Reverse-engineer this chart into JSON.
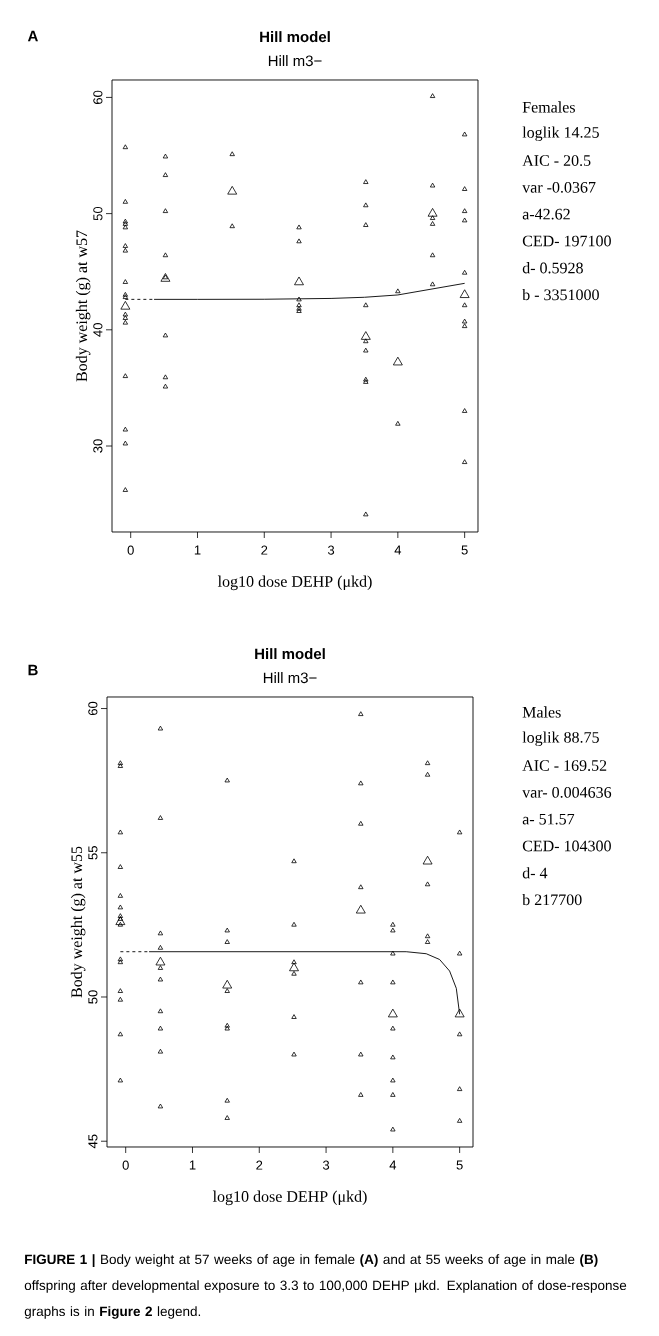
{
  "chart_data": [
    {
      "type": "scatter",
      "title": "Hill model",
      "subtitle": "Hill m3−",
      "xlabel": "log10 dose DEHP (μkd)",
      "ylabel": "Body weight (g) at w57",
      "xlim": [
        -0.28,
        5.2
      ],
      "ylim": [
        22.6,
        61.5
      ],
      "xticks": [
        0,
        1,
        2,
        3,
        4,
        5
      ],
      "yticks": [
        30,
        40,
        50,
        60
      ],
      "marker": "triangle",
      "annotations": [
        "A",
        "Females",
        "loglik 14.25",
        "AIC - 20.5",
        "var -0.0367",
        "a-42.62",
        "CED- 197100",
        "d- 0.5928",
        "b - 3351000"
      ],
      "series": [
        {
          "color": "#000000",
          "x": [
            -0.08,
            -0.08,
            -0.08,
            -0.08,
            -0.08,
            -0.08,
            -0.08,
            -0.08,
            -0.08,
            -0.08,
            -0.08,
            -0.08,
            -0.08,
            -0.08,
            -0.08,
            -0.08,
            -0.08,
            0.52,
            0.52,
            0.52,
            0.52,
            0.52,
            0.52,
            0.52,
            0.52,
            1.52,
            1.52,
            2.52,
            2.52,
            2.52,
            2.52,
            2.52,
            2.52,
            3.52,
            3.52,
            3.52,
            3.52,
            3.52,
            3.52,
            3.52,
            3.52,
            3.52,
            4,
            4,
            4.52,
            4.52,
            4.52,
            4.52,
            4.52,
            4.52,
            5,
            5,
            5,
            5,
            5,
            5,
            5,
            5,
            5,
            5
          ],
          "values": [
            55.7,
            51.0,
            49.3,
            49.1,
            48.8,
            47.2,
            46.8,
            44.1,
            43.0,
            42.8,
            41.3,
            41.0,
            40.6,
            36.0,
            31.4,
            30.2,
            26.2,
            54.9,
            53.3,
            50.2,
            46.4,
            44.5,
            39.5,
            35.9,
            35.1,
            55.1,
            48.9,
            48.8,
            47.6,
            42.6,
            42.1,
            41.8,
            41.6,
            52.7,
            50.7,
            49.0,
            42.1,
            39.0,
            38.2,
            35.7,
            35.5,
            24.1,
            43.3,
            31.9,
            60.1,
            52.4,
            49.6,
            49.1,
            46.4,
            43.9,
            56.8,
            52.1,
            50.2,
            49.4,
            44.9,
            42.1,
            40.7,
            40.3,
            33.0,
            28.6
          ]
        },
        {
          "color": "#000000",
          "x": [
            -0.08,
            0.52,
            1.52,
            2.52,
            3.52,
            4,
            4.52,
            5
          ],
          "values": [
            42.0,
            44.4,
            51.9,
            44.1,
            39.4,
            37.2,
            50.0,
            43.0
          ]
        },
        {
          "type": "line",
          "color": "#000000",
          "marker": "none",
          "line_style": "dashed",
          "x": [
            -0.08,
            0.35
          ],
          "values": [
            42.62,
            42.62
          ]
        },
        {
          "type": "line",
          "color": "#000000",
          "marker": "none",
          "line_style": "solid",
          "x": [
            0.35,
            1,
            2,
            3,
            3.5,
            4,
            4.5,
            5
          ],
          "values": [
            42.62,
            42.62,
            42.63,
            42.7,
            42.8,
            43.0,
            43.5,
            44.0
          ]
        }
      ]
    },
    {
      "type": "scatter",
      "title": "Hill model",
      "subtitle": "Hill m3−",
      "xlabel": "log10 dose DEHP (μkd)",
      "ylabel": "Body weight (g) at w55",
      "xlim": [
        -0.28,
        5.2
      ],
      "ylim": [
        44.8,
        60.4
      ],
      "xticks": [
        0,
        1,
        2,
        3,
        4,
        5
      ],
      "yticks": [
        45,
        50,
        55,
        60
      ],
      "marker": "triangle",
      "annotations": [
        "B",
        "Males",
        "loglik 88.75",
        "AIC - 169.52",
        "var- 0.004636",
        "a- 51.57",
        "CED- 104300",
        "d- 4",
        "b 217700",
        "**FIGURE 1 |** Body weight at 57 weeks of age in female **(A)** and at 55 weeks of age in male **(B)** offspring after developmental exposure to 3.3 to 100,000 DEHP μkd. Explanation of dose-response graphs is in **Figure 2** legend."
      ],
      "series": [
        {
          "color": "#000000",
          "x": [
            -0.08,
            -0.08,
            -0.08,
            -0.08,
            -0.08,
            -0.08,
            -0.08,
            -0.08,
            -0.08,
            -0.08,
            -0.08,
            -0.08,
            -0.08,
            -0.08,
            -0.08,
            0.52,
            0.52,
            0.52,
            0.52,
            0.52,
            0.52,
            0.52,
            0.52,
            0.52,
            0.52,
            1.52,
            1.52,
            1.52,
            1.52,
            1.52,
            1.52,
            1.52,
            1.52,
            2.52,
            2.52,
            2.52,
            2.52,
            2.52,
            2.52,
            3.52,
            3.52,
            3.52,
            3.52,
            3.52,
            3.52,
            3.52,
            4,
            4,
            4,
            4,
            4,
            4,
            4,
            4,
            4,
            4.52,
            4.52,
            4.52,
            4.52,
            4.52,
            5,
            5,
            5,
            5,
            5
          ],
          "values": [
            58.1,
            58.0,
            55.7,
            54.5,
            53.5,
            53.1,
            52.8,
            52.7,
            52.5,
            51.3,
            51.2,
            50.2,
            49.9,
            48.7,
            47.1,
            59.3,
            56.2,
            52.2,
            51.7,
            51.0,
            50.6,
            49.5,
            48.9,
            48.1,
            46.2,
            57.5,
            52.3,
            51.9,
            50.2,
            49.0,
            48.9,
            46.4,
            45.8,
            54.7,
            52.5,
            51.2,
            50.8,
            49.3,
            48.0,
            59.8,
            57.4,
            56.0,
            53.8,
            50.5,
            48.0,
            46.6,
            52.5,
            52.3,
            51.5,
            50.5,
            48.9,
            47.9,
            47.1,
            46.6,
            45.4,
            58.1,
            57.7,
            53.9,
            52.1,
            51.9,
            55.7,
            51.5,
            48.7,
            46.8,
            45.7
          ]
        },
        {
          "color": "#000000",
          "x": [
            -0.08,
            0.52,
            1.52,
            2.52,
            3.52,
            4,
            4.52,
            5
          ],
          "values": [
            52.6,
            51.2,
            50.4,
            51.0,
            53.0,
            49.4,
            54.7,
            49.4
          ]
        },
        {
          "type": "line",
          "color": "#000000",
          "marker": "none",
          "line_style": "dashed",
          "x": [
            -0.08,
            0.35
          ],
          "values": [
            51.57,
            51.57
          ]
        },
        {
          "type": "line",
          "color": "#000000",
          "marker": "none",
          "line_style": "solid",
          "x": [
            0.35,
            4.2,
            4.5,
            4.7,
            4.85,
            4.95,
            5
          ],
          "values": [
            51.57,
            51.57,
            51.5,
            51.3,
            50.9,
            50.3,
            49.4
          ]
        }
      ]
    }
  ]
}
